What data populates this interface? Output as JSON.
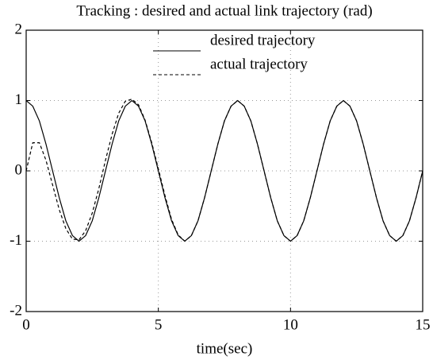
{
  "chart_data": {
    "type": "line",
    "title": "Tracking : desired and actual link trajectory (rad)",
    "x_label": "time(sec)",
    "x": [
      0,
      0.25,
      0.5,
      0.75,
      1,
      1.25,
      1.5,
      1.75,
      2,
      2.25,
      2.5,
      2.75,
      3,
      3.25,
      3.5,
      3.75,
      4,
      4.25,
      4.5,
      4.75,
      5,
      5.25,
      5.5,
      5.75,
      6,
      6.25,
      6.5,
      6.75,
      7,
      7.25,
      7.5,
      7.75,
      8,
      8.25,
      8.5,
      8.75,
      9,
      9.25,
      9.5,
      9.75,
      10,
      10.25,
      10.5,
      10.75,
      11,
      11.25,
      11.5,
      11.75,
      12,
      12.25,
      12.5,
      12.75,
      13,
      13.25,
      13.5,
      13.75,
      14,
      14.25,
      14.5,
      14.75,
      15
    ],
    "series": [
      {
        "name": "desired trajectory",
        "color": "#000000",
        "line_style": "solid",
        "values": [
          1,
          0.92,
          0.71,
          0.38,
          0,
          -0.38,
          -0.71,
          -0.92,
          -1,
          -0.92,
          -0.71,
          -0.38,
          0,
          0.38,
          0.71,
          0.92,
          1,
          0.92,
          0.71,
          0.38,
          0,
          -0.38,
          -0.71,
          -0.92,
          -1,
          -0.92,
          -0.71,
          -0.38,
          0,
          0.38,
          0.71,
          0.92,
          1,
          0.92,
          0.71,
          0.38,
          0,
          -0.38,
          -0.71,
          -0.92,
          -1,
          -0.92,
          -0.71,
          -0.38,
          0,
          0.38,
          0.71,
          0.92,
          1,
          0.92,
          0.71,
          0.38,
          0,
          -0.38,
          -0.71,
          -0.92,
          -1,
          -0.92,
          -0.71,
          -0.38,
          0
        ]
      },
      {
        "name": "actual trajectory",
        "color": "#000000",
        "line_style": "dashed",
        "values": [
          0,
          0.4,
          0.4,
          0.15,
          -0.2,
          -0.55,
          -0.82,
          -0.97,
          -0.98,
          -0.85,
          -0.6,
          -0.25,
          0.15,
          0.52,
          0.82,
          0.99,
          1.02,
          0.94,
          0.72,
          0.4,
          0.03,
          -0.35,
          -0.69,
          -0.91,
          -1,
          -0.92,
          -0.71,
          -0.38,
          0,
          0.38,
          0.71,
          0.92,
          1,
          0.92,
          0.71,
          0.38,
          0,
          -0.38,
          -0.71,
          -0.92,
          -1,
          -0.92,
          -0.71,
          -0.38,
          0,
          0.38,
          0.71,
          0.92,
          1,
          0.92,
          0.71,
          0.38,
          0,
          -0.38,
          -0.71,
          -0.92,
          -1,
          -0.92,
          -0.71,
          -0.38,
          0
        ]
      }
    ],
    "xlim": [
      0,
      15
    ],
    "xticks": [
      0,
      5,
      10,
      15
    ],
    "ylim": [
      -2,
      2
    ],
    "yticks": [
      -2,
      -1,
      0,
      1,
      2
    ],
    "grid": true,
    "legend_position": "top"
  }
}
